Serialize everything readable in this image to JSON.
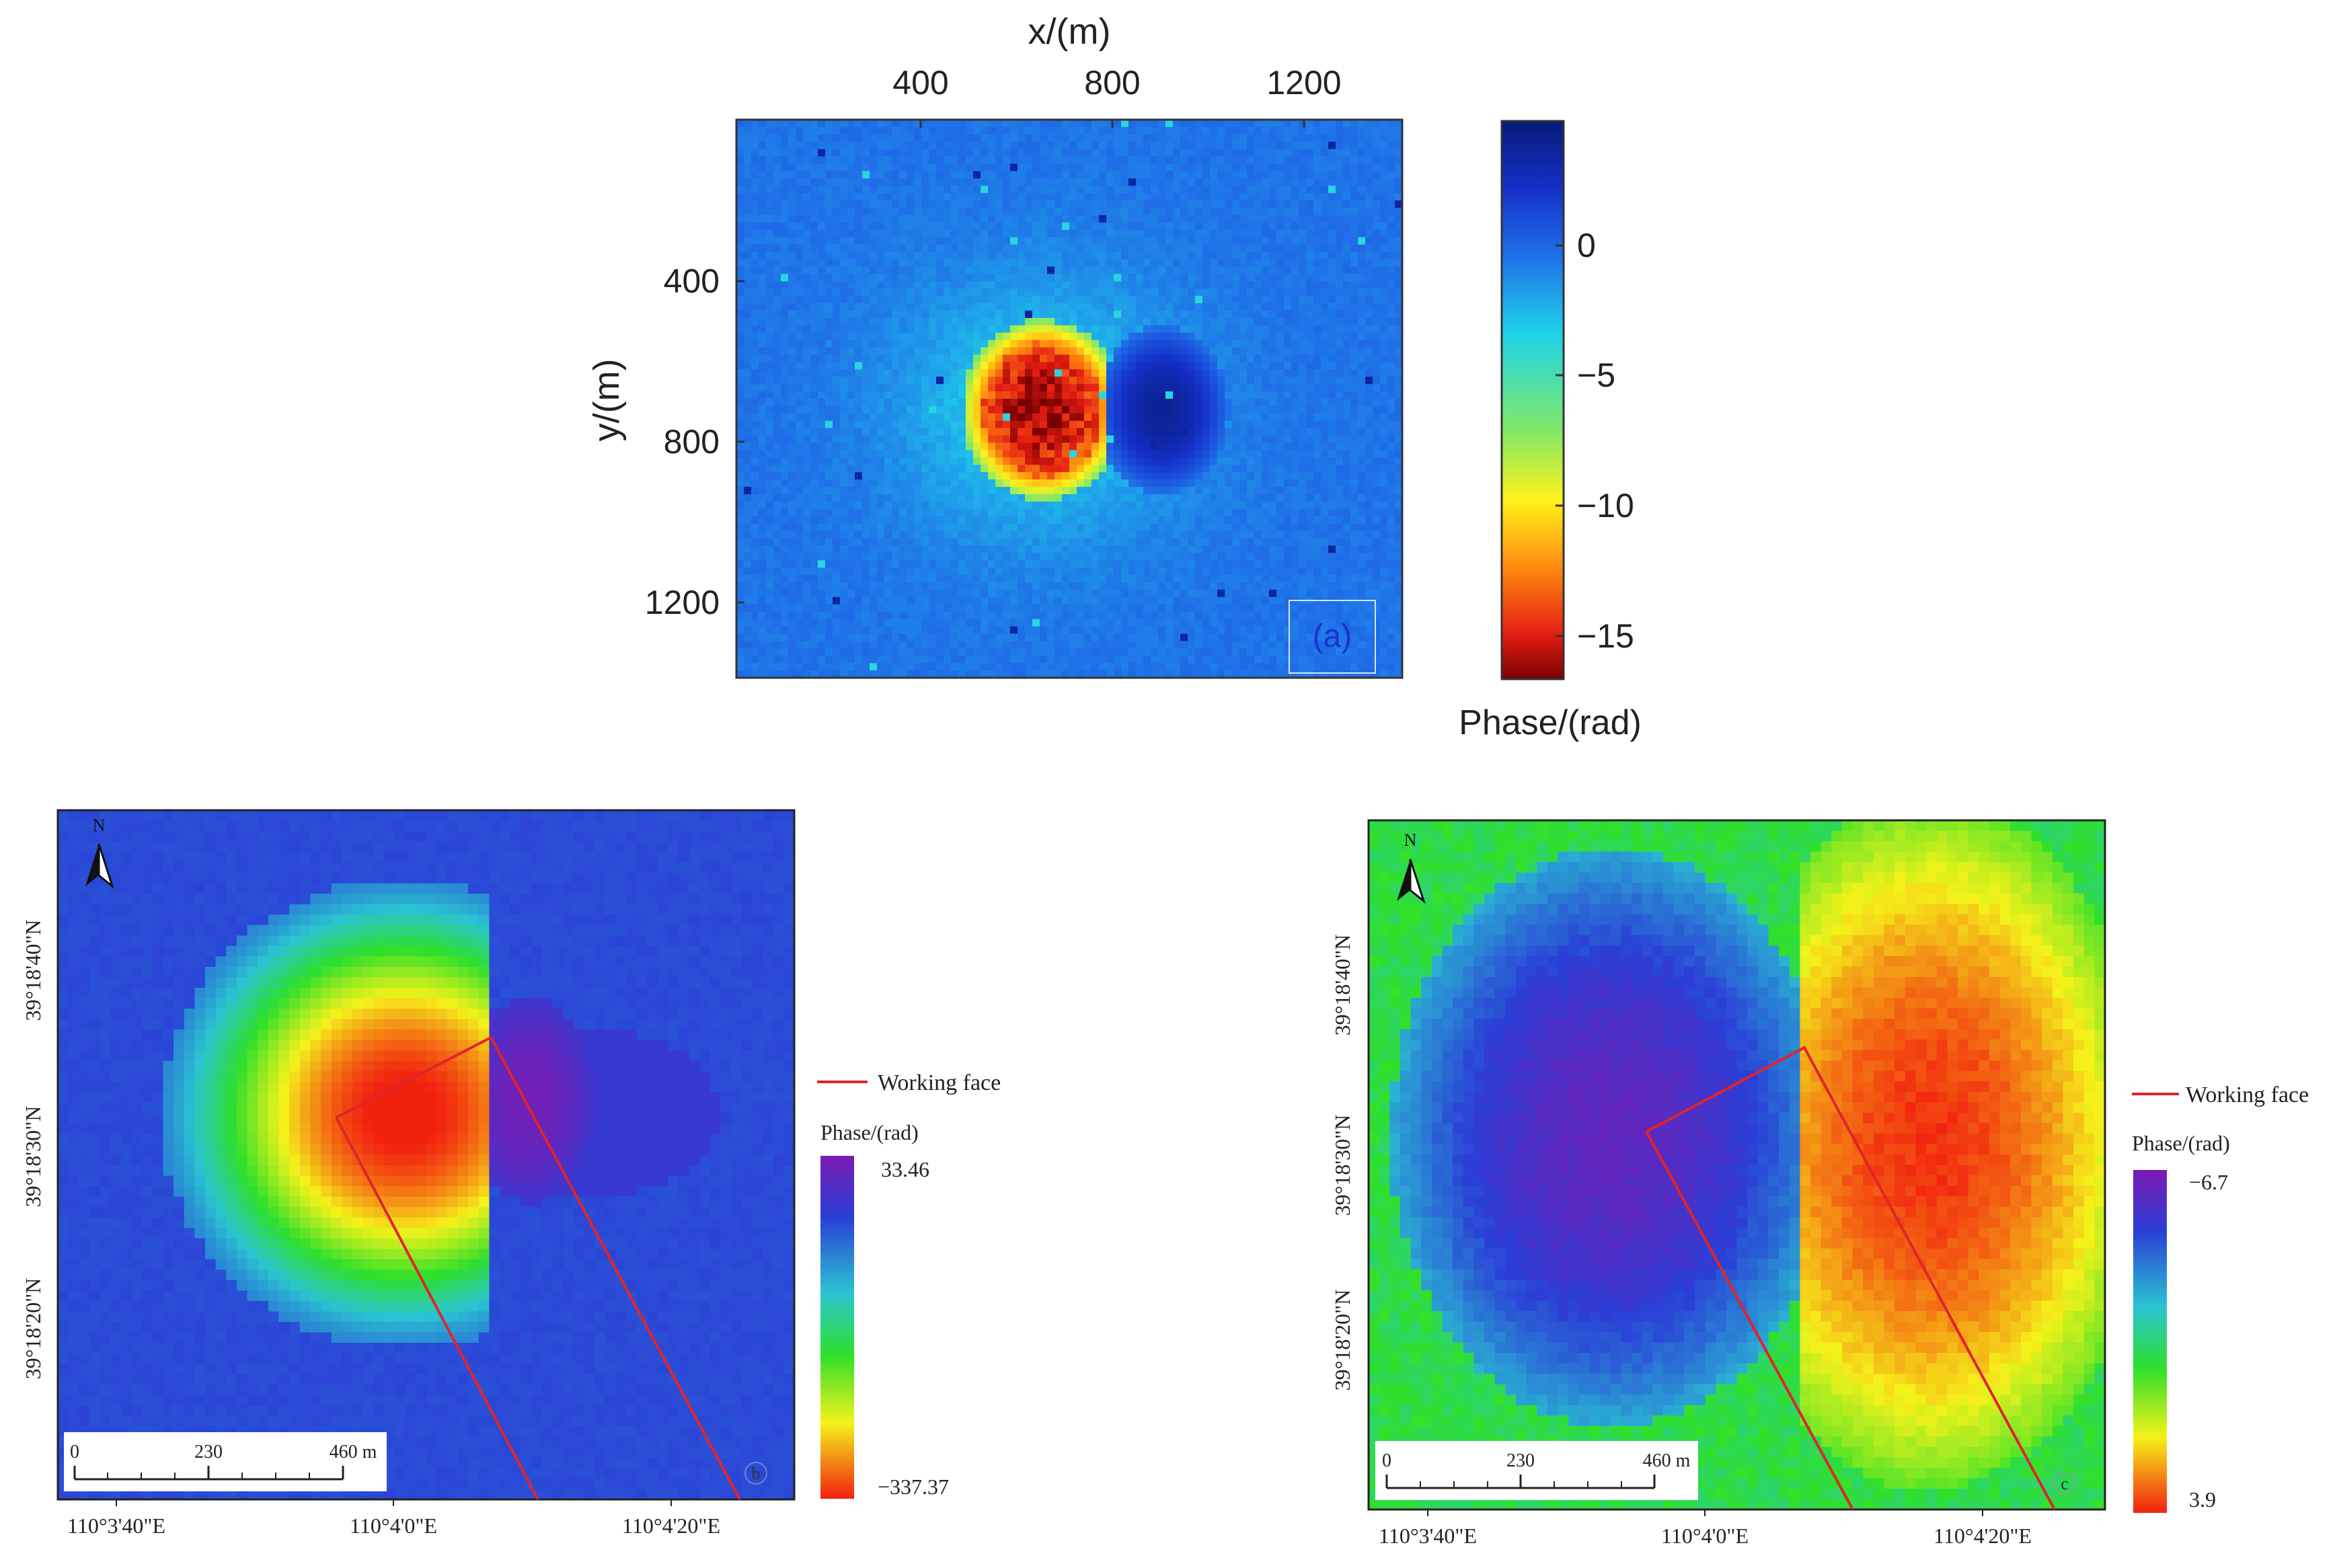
{
  "panel_a": {
    "xlabel": "x/(m)",
    "ylabel": "y/(m)",
    "x_ticks": [
      "400",
      "800",
      "1200"
    ],
    "y_ticks": [
      "400",
      "800",
      "1200"
    ],
    "panel_label": "(a)",
    "colorbar_label": "Phase/(rad)",
    "colorbar_ticks": [
      "0",
      "−5",
      "−10",
      "−15"
    ]
  },
  "panel_b": {
    "x_ticks": [
      "110°3'40\"E",
      "110°4'0\"E",
      "110°4'20\"E"
    ],
    "y_ticks": [
      "39°18'40\"N",
      "39°18'30\"N",
      "39°18'20\"N"
    ],
    "north_label": "N",
    "scale_labels": [
      "0",
      "230",
      "460 m"
    ],
    "legend_label": "Working face",
    "colorbar_title": "Phase/(rad)",
    "colorbar_max": "33.46",
    "colorbar_min": "−337.37",
    "panel_label": "b"
  },
  "panel_c": {
    "x_ticks": [
      "110°3'40\"E",
      "110°4'0\"E",
      "110°4'20\"E"
    ],
    "y_ticks": [
      "39°18'40\"N",
      "39°18'30\"N",
      "39°18'20\"N"
    ],
    "north_label": "N",
    "scale_labels": [
      "0",
      "230",
      "460 m"
    ],
    "legend_label": "Working face",
    "colorbar_title": "Phase/(rad)",
    "colorbar_max": "−6.7",
    "colorbar_min": "3.9",
    "panel_label": "c"
  },
  "colors": {
    "working_face": "#e0242b",
    "jet_dark_blue": "#08178c",
    "jet_blue": "#1f6fe8",
    "jet_cyan": "#1fd2ea",
    "jet_yellow": "#fff21a",
    "jet_red": "#e41e13",
    "jet_dark_red": "#7a0000",
    "bc_purple": "#7a1bb3",
    "bc_blue": "#2a3fd6",
    "bc_cyan": "#2ac4d2",
    "bc_green": "#2ee02a",
    "bc_yellow": "#f5f21a",
    "bc_red": "#f2200f"
  },
  "chart_data": [
    {
      "type": "heatmap",
      "panel": "a",
      "xlabel": "x/(m)",
      "ylabel": "y/(m)",
      "x_ticks": [
        400,
        800,
        1200
      ],
      "y_ticks": [
        400,
        800,
        1200
      ],
      "xlim": [
        10,
        1410
      ],
      "ylim": [
        1400,
        10
      ],
      "colorbar": {
        "label": "Phase/(rad)",
        "range": [
          -17,
          4.5
        ],
        "ticks": [
          0,
          -5,
          -10,
          -15
        ],
        "colormap": "jet"
      },
      "background_phase": -2,
      "features": [
        {
          "kind": "subsidence bowl",
          "center_xy_m": [
            650,
            740
          ],
          "min_phase": -17
        },
        {
          "kind": "uplift lobe",
          "center_xy_m": [
            930,
            690
          ],
          "max_phase": 3
        }
      ]
    },
    {
      "type": "heatmap",
      "panel": "b",
      "x_ticks": [
        "110°3'40\"E",
        "110°4'0\"E",
        "110°4'20\"E"
      ],
      "y_ticks": [
        "39°18'40\"N",
        "39°18'30\"N",
        "39°18'20\"N"
      ],
      "colorbar": {
        "label": "Phase/(rad)",
        "min": -337.37,
        "max": 33.46
      },
      "legend": [
        "Working face"
      ],
      "scale_bar_m": [
        0,
        230,
        460
      ]
    },
    {
      "type": "heatmap",
      "panel": "c",
      "x_ticks": [
        "110°3'40\"E",
        "110°4'0\"E",
        "110°4'20\"E"
      ],
      "y_ticks": [
        "39°18'40\"N",
        "39°18'30\"N",
        "39°18'20\"N"
      ],
      "colorbar": {
        "label": "Phase/(rad)",
        "min": 3.9,
        "max": -6.7
      },
      "legend": [
        "Working face"
      ],
      "scale_bar_m": [
        0,
        230,
        460
      ]
    }
  ]
}
